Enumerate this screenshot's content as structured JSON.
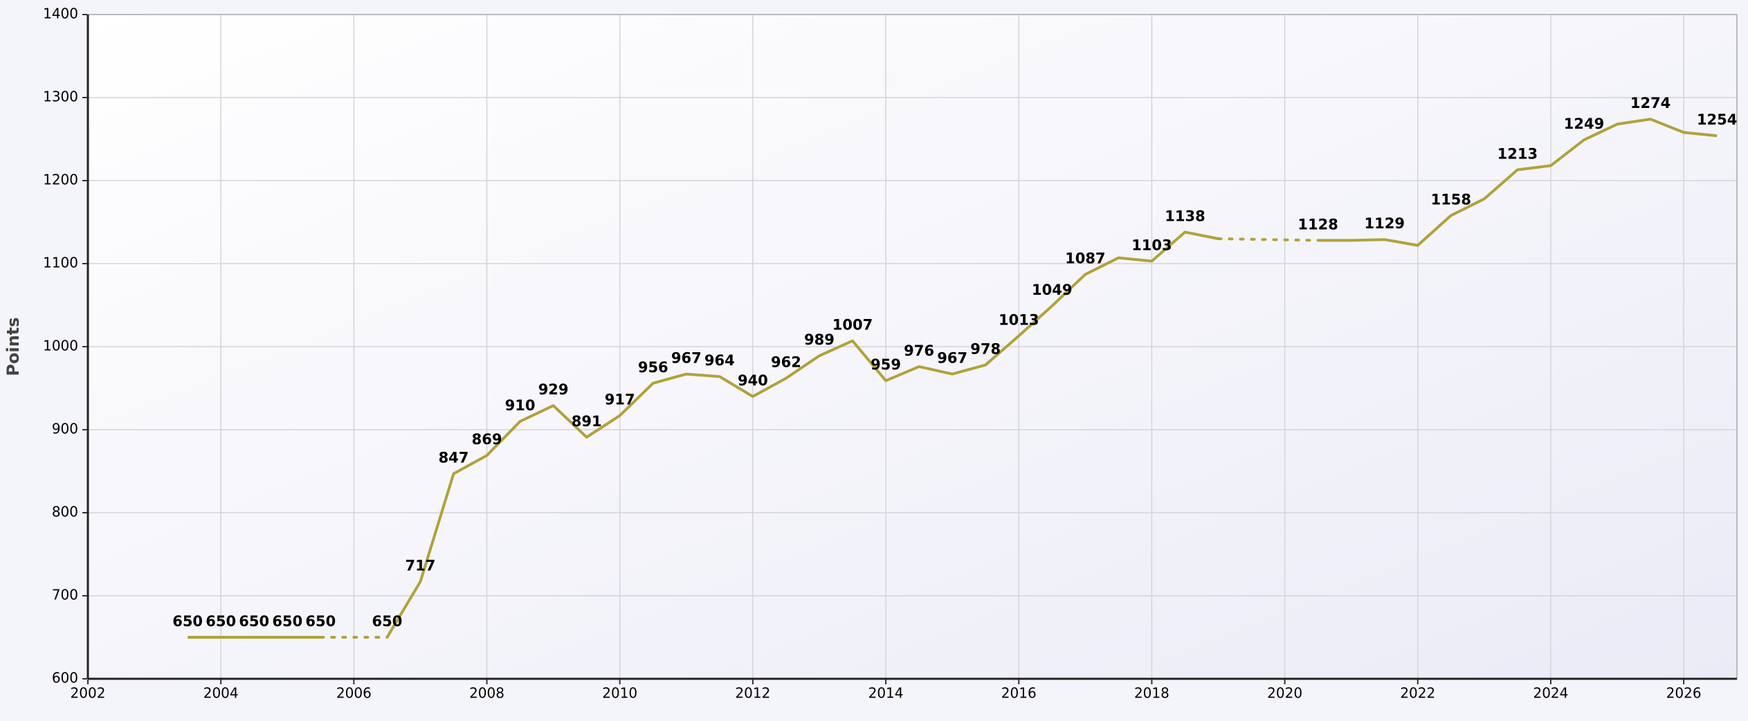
{
  "chart_data": {
    "type": "line",
    "y_label": "Points",
    "x": [
      2003.5,
      2004,
      2004.5,
      2005,
      2005.5,
      2006,
      2006.5,
      2007,
      2007.5,
      2008,
      2008.5,
      2009,
      2009.5,
      2010,
      2010.5,
      2011,
      2011.5,
      2012,
      2012.5,
      2013,
      2013.5,
      2014,
      2014.5,
      2015,
      2015.5,
      2016,
      2016.5,
      2017,
      2017.5,
      2018,
      2018.5,
      2019,
      2019.5,
      2020,
      2020.5,
      2021,
      2021.5,
      2022,
      2022.5,
      2023,
      2023.5,
      2024,
      2024.5,
      2025,
      2025.5,
      2026,
      2026.5
    ],
    "values": [
      650,
      650,
      650,
      650,
      650,
      null,
      650,
      717,
      847,
      869,
      910,
      929,
      891,
      917,
      956,
      967,
      964,
      940,
      962,
      989,
      1007,
      959,
      976,
      967,
      978,
      1013,
      1049,
      1087,
      1107,
      1103,
      1138,
      1130,
      null,
      null,
      1128,
      1128,
      1129,
      1122,
      1158,
      1178,
      1213,
      1218,
      1249,
      1268,
      1274,
      1258,
      1254
    ],
    "value_labels": [
      "650",
      "650",
      "650",
      "650",
      "650",
      null,
      "650",
      "717",
      "847",
      "869",
      "910",
      "929",
      "891",
      "917",
      "956",
      "967",
      "964",
      "940",
      "962",
      "989",
      "1007",
      "959",
      "976",
      "967",
      "978",
      "1013",
      "1049",
      "1087",
      null,
      "1103",
      "1138",
      null,
      null,
      null,
      "1128",
      null,
      "1129",
      null,
      "1158",
      null,
      "1213",
      null,
      "1249",
      null,
      "1274",
      null,
      "1254"
    ],
    "color": "#b0a23a",
    "gap_style": "dotted",
    "xlim": [
      2002,
      2026.8
    ],
    "xticks": [
      2002,
      2004,
      2006,
      2008,
      2010,
      2012,
      2014,
      2016,
      2018,
      2020,
      2022,
      2024,
      2026
    ],
    "ylim": [
      600,
      1400
    ],
    "yticks": [
      600,
      700,
      800,
      900,
      1000,
      1100,
      1200,
      1300,
      1400
    ],
    "grid": true
  }
}
